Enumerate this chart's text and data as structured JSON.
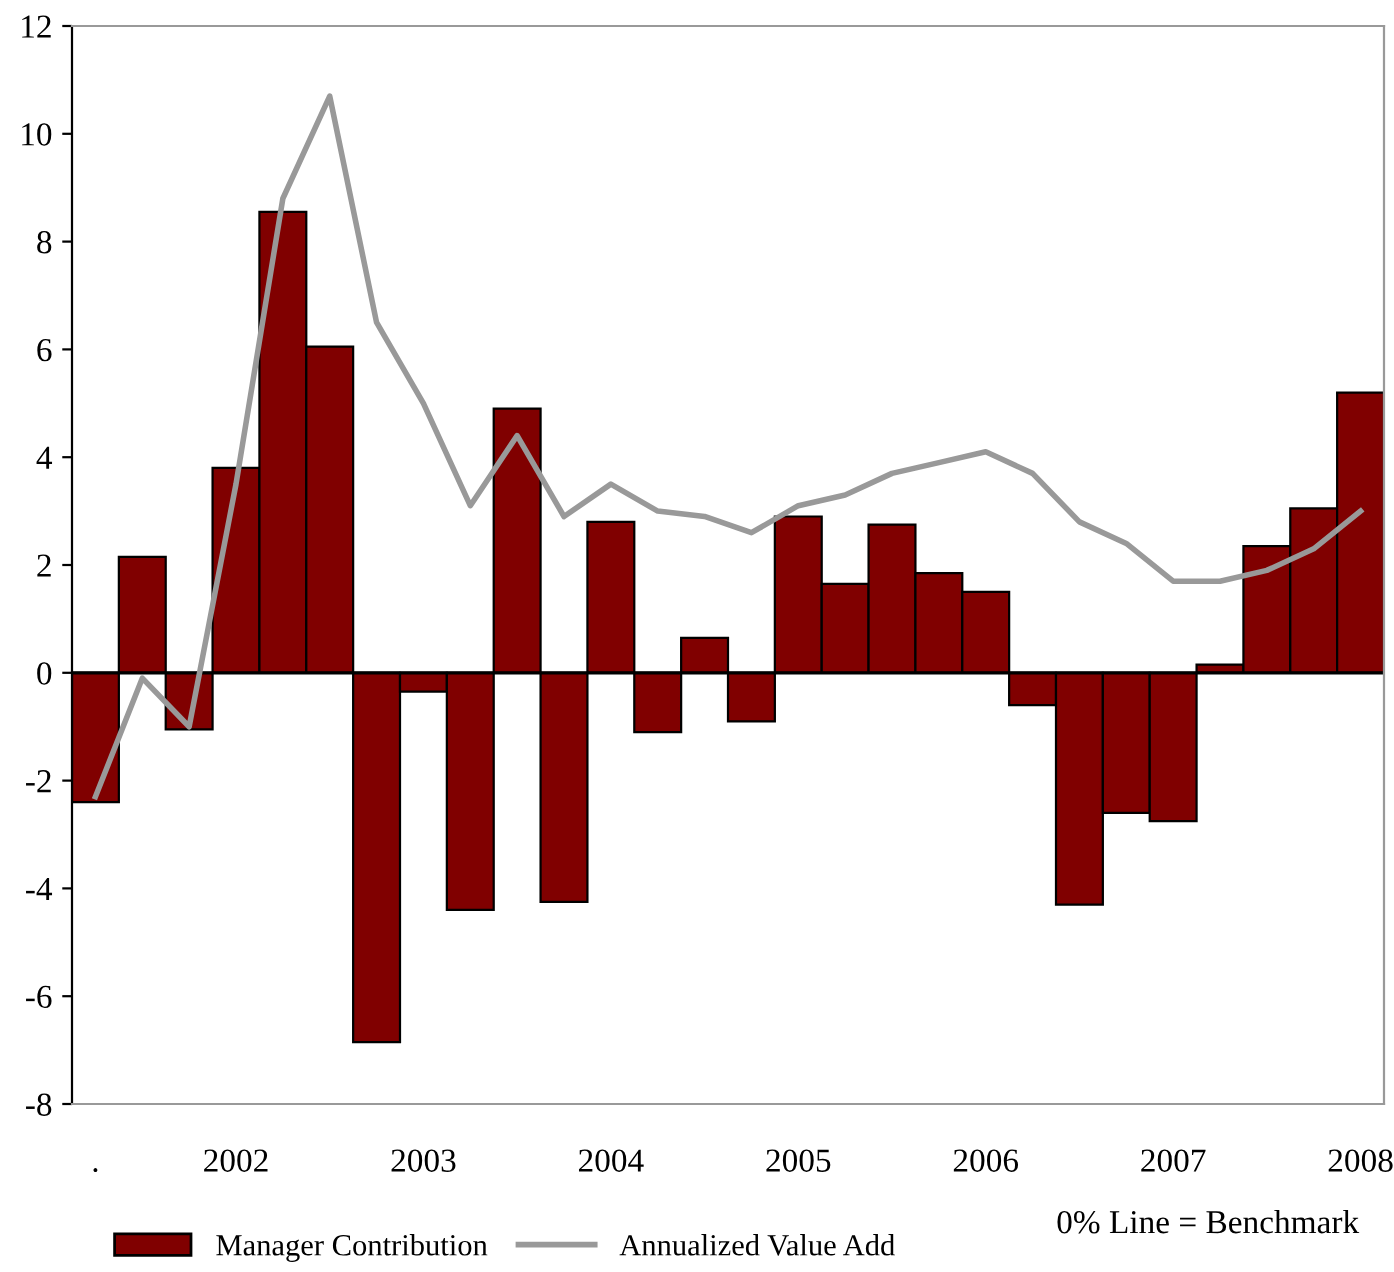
{
  "chart_data": {
    "type": "bar",
    "categories": [
      ".",
      null,
      null,
      "2002",
      null,
      null,
      null,
      "2003",
      null,
      null,
      null,
      "2004",
      null,
      null,
      null,
      "2005",
      null,
      null,
      null,
      "2006",
      null,
      null,
      null,
      "2007",
      null,
      null,
      null,
      "2008"
    ],
    "series": [
      {
        "name": "Manager Contribution",
        "color": "#800000",
        "values": [
          -2.4,
          2.15,
          -1.05,
          3.8,
          8.55,
          6.05,
          -6.85,
          -0.35,
          -4.4,
          4.9,
          -4.25,
          2.8,
          -1.1,
          0.65,
          -0.9,
          2.9,
          1.65,
          2.75,
          1.85,
          1.5,
          -0.6,
          -4.3,
          -2.6,
          -2.75,
          0.15,
          2.35,
          3.05,
          5.2
        ]
      },
      {
        "name": "Annualized Value Add",
        "type": "line",
        "color": "#999999",
        "values": [
          -2.3,
          -0.1,
          -1.0,
          3.5,
          8.8,
          10.7,
          6.5,
          5.0,
          3.1,
          4.4,
          2.9,
          3.5,
          3.0,
          2.9,
          2.6,
          3.1,
          3.3,
          3.7,
          3.9,
          4.1,
          3.7,
          2.8,
          2.4,
          1.7,
          1.7,
          1.9,
          2.3,
          3.0
        ]
      }
    ],
    "ylim": [
      -8,
      12
    ],
    "yticks": [
      -8,
      -6,
      -4,
      -2,
      0,
      2,
      4,
      6,
      8,
      10,
      12
    ],
    "ref_lines": [
      {
        "axis": "y",
        "value": 0,
        "color": "#000000"
      }
    ],
    "legend": "bottom",
    "grid": false,
    "annotations": [
      "0% Line = Benchmark"
    ]
  }
}
